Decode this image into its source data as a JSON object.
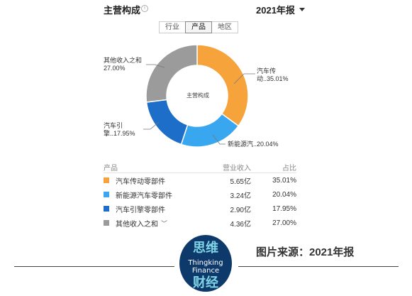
{
  "header": {
    "title": "主营构成",
    "info_icon": "info-icon",
    "year_label": "2021年报"
  },
  "tabs": [
    {
      "label": "行业",
      "active": false
    },
    {
      "label": "产品",
      "active": true
    },
    {
      "label": "地区",
      "active": false
    }
  ],
  "chart_data": {
    "type": "pie",
    "donut": true,
    "center_label": "主营构成",
    "slices": [
      {
        "label": "汽车传动零部件",
        "callout_line1": "汽车传",
        "callout_line2": "动..35.01%",
        "value": 35.01,
        "color": "#F5A33A"
      },
      {
        "label": "新能源汽车零部件",
        "callout_line1": "新能源汽..20.04%",
        "callout_line2": "",
        "value": 20.04,
        "color": "#39A7EF"
      },
      {
        "label": "汽车引擎零部件",
        "callout_line1": "汽车引",
        "callout_line2": "擎..17.95%",
        "value": 17.95,
        "color": "#1D6EC9"
      },
      {
        "label": "其他收入之和",
        "callout_line1": "其他收入之和",
        "callout_line2": "27.00%",
        "value": 27.0,
        "color": "#9B9B9B"
      }
    ]
  },
  "table": {
    "headers": {
      "name": "产品",
      "revenue": "营业收入",
      "pct": "占比"
    },
    "rows": [
      {
        "name": "汽车传动零部件",
        "revenue": "5.65亿",
        "pct": "35.01%",
        "color": "#F5A33A",
        "expandable": false
      },
      {
        "name": "新能源汽车零部件",
        "revenue": "3.24亿",
        "pct": "20.04%",
        "color": "#39A7EF",
        "expandable": false
      },
      {
        "name": "汽车引擎零部件",
        "revenue": "2.90亿",
        "pct": "17.95%",
        "color": "#1D6EC9",
        "expandable": false
      },
      {
        "name": "其他收入之和",
        "revenue": "4.36亿",
        "pct": "27.00%",
        "color": "#9B9B9B",
        "expandable": true
      }
    ],
    "expand_icon": "chevron-down-icon"
  },
  "footer": {
    "logo": {
      "top_text": "思维",
      "mid_line1": "Thingking",
      "mid_line2": "Finance",
      "bottom_text": "财经",
      "bg_color": "#0E3A6B",
      "accent_color": "#7FD3E6"
    },
    "source_text": "图片来源：2021年报"
  }
}
